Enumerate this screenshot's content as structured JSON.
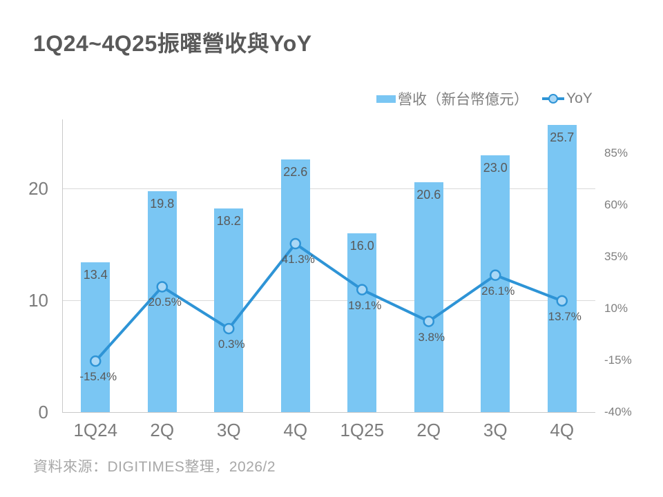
{
  "title": "1Q24~4Q25振曜營收與YoY",
  "legend": {
    "revenue_label": "營收（新台幣億元）",
    "yoy_label": "YoY"
  },
  "footer": {
    "text": "資料來源：DIGITIMES整理，2026/2"
  },
  "chart_data": {
    "type": "combo",
    "title": "1Q24~4Q25振曜營收與YoY",
    "categories": [
      "1Q24",
      "2Q",
      "3Q",
      "4Q",
      "1Q25",
      "2Q",
      "3Q",
      "4Q"
    ],
    "series": [
      {
        "name": "營收（新台幣億元）",
        "type": "bar",
        "axis": "left",
        "values": [
          13.4,
          19.8,
          18.2,
          22.6,
          16.0,
          20.6,
          23.0,
          25.7
        ],
        "labels": [
          "13.4",
          "19.8",
          "18.2",
          "22.6",
          "16.0",
          "20.6",
          "23.0",
          "25.7"
        ]
      },
      {
        "name": "YoY",
        "type": "line",
        "axis": "right",
        "unit": "%",
        "values": [
          -15.4,
          20.5,
          0.3,
          41.3,
          19.1,
          3.8,
          26.1,
          13.7
        ],
        "labels": [
          "-15.4%",
          "20.5%",
          "0.3%",
          "41.3%",
          "19.1%",
          "3.8%",
          "26.1%",
          "13.7%"
        ]
      }
    ],
    "left_axis": {
      "ticks": [
        0,
        10,
        20
      ],
      "tick_labels": [
        "0",
        "10",
        "20"
      ],
      "range": [
        0,
        26.2
      ],
      "gridlines": [
        10,
        20
      ]
    },
    "right_axis": {
      "ticks": [
        -40,
        -15,
        10,
        35,
        60,
        85
      ],
      "tick_labels": [
        "-40%",
        "-15%",
        "10%",
        "35%",
        "60%",
        "85%"
      ],
      "range": [
        -40,
        101.3
      ]
    },
    "legend_position": "top-right",
    "grid": "horizontal-only",
    "colors": {
      "bar": "#7AC6F3",
      "line": "#2E94D6",
      "marker_fill": "#AAD8F6",
      "grid": "#D9D9D9",
      "axis": "#C9C9C9",
      "data_label": "#595959",
      "tick_label": "#7C7C7C"
    }
  }
}
